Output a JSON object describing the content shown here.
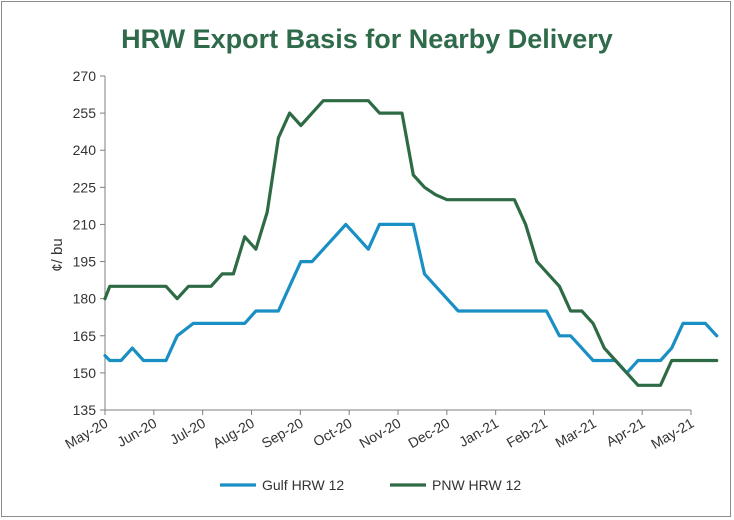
{
  "chart_data": {
    "type": "line",
    "title": "HRW Export Basis for Nearby Delivery",
    "ylabel": "¢/ bu",
    "xlabel": "",
    "ylim": [
      135,
      270
    ],
    "yticks": [
      135,
      150,
      165,
      180,
      195,
      210,
      225,
      240,
      255,
      270
    ],
    "xlim": [
      "2020-05-01",
      "2021-05-01"
    ],
    "xticks": [
      "May-20",
      "Jun-20",
      "Jul-20",
      "Aug-20",
      "Sep-20",
      "Oct-20",
      "Nov-20",
      "Dec-20",
      "Jan-21",
      "Feb-21",
      "Mar-21",
      "Apr-21",
      "May-21"
    ],
    "grid": false,
    "legend_position": "bottom",
    "series": [
      {
        "name": "Gulf HRW 12",
        "color": "#1a8fc4",
        "points": [
          [
            "2020-05-01",
            157
          ],
          [
            "2020-05-04",
            155
          ],
          [
            "2020-05-11",
            155
          ],
          [
            "2020-05-18",
            160
          ],
          [
            "2020-05-25",
            155
          ],
          [
            "2020-06-08",
            155
          ],
          [
            "2020-06-15",
            165
          ],
          [
            "2020-06-25",
            170
          ],
          [
            "2020-07-06",
            170
          ],
          [
            "2020-07-13",
            170
          ],
          [
            "2020-07-20",
            170
          ],
          [
            "2020-07-27",
            170
          ],
          [
            "2020-08-03",
            175
          ],
          [
            "2020-08-10",
            175
          ],
          [
            "2020-08-17",
            175
          ],
          [
            "2020-08-24",
            185
          ],
          [
            "2020-08-31",
            195
          ],
          [
            "2020-09-07",
            195
          ],
          [
            "2020-09-14",
            200
          ],
          [
            "2020-09-21",
            205
          ],
          [
            "2020-09-28",
            210
          ],
          [
            "2020-10-05",
            205
          ],
          [
            "2020-10-12",
            200
          ],
          [
            "2020-10-19",
            210
          ],
          [
            "2020-10-26",
            210
          ],
          [
            "2020-11-02",
            210
          ],
          [
            "2020-11-09",
            210
          ],
          [
            "2020-11-16",
            190
          ],
          [
            "2020-11-23",
            185
          ],
          [
            "2020-11-30",
            180
          ],
          [
            "2020-12-07",
            175
          ],
          [
            "2020-12-21",
            175
          ],
          [
            "2021-01-04",
            175
          ],
          [
            "2021-01-18",
            175
          ],
          [
            "2021-01-31",
            175
          ],
          [
            "2021-02-08",
            165
          ],
          [
            "2021-02-15",
            165
          ],
          [
            "2021-02-22",
            160
          ],
          [
            "2021-03-01",
            155
          ],
          [
            "2021-03-15",
            155
          ],
          [
            "2021-03-22",
            150
          ],
          [
            "2021-03-29",
            155
          ],
          [
            "2021-04-05",
            155
          ],
          [
            "2021-04-12",
            155
          ],
          [
            "2021-04-19",
            160
          ],
          [
            "2021-04-26",
            170
          ],
          [
            "2021-05-03",
            170
          ],
          [
            "2021-05-10",
            170
          ],
          [
            "2021-05-17",
            165
          ]
        ]
      },
      {
        "name": "PNW HRW 12",
        "color": "#2e6b45",
        "points": [
          [
            "2020-05-01",
            180
          ],
          [
            "2020-05-04",
            185
          ],
          [
            "2020-05-11",
            185
          ],
          [
            "2020-05-18",
            185
          ],
          [
            "2020-05-25",
            185
          ],
          [
            "2020-06-01",
            185
          ],
          [
            "2020-06-08",
            185
          ],
          [
            "2020-06-15",
            180
          ],
          [
            "2020-06-22",
            185
          ],
          [
            "2020-06-29",
            185
          ],
          [
            "2020-07-06",
            185
          ],
          [
            "2020-07-13",
            190
          ],
          [
            "2020-07-20",
            190
          ],
          [
            "2020-07-27",
            205
          ],
          [
            "2020-08-03",
            200
          ],
          [
            "2020-08-10",
            215
          ],
          [
            "2020-08-17",
            245
          ],
          [
            "2020-08-24",
            255
          ],
          [
            "2020-08-31",
            250
          ],
          [
            "2020-09-07",
            255
          ],
          [
            "2020-09-14",
            260
          ],
          [
            "2020-09-21",
            260
          ],
          [
            "2020-09-28",
            260
          ],
          [
            "2020-10-05",
            260
          ],
          [
            "2020-10-12",
            260
          ],
          [
            "2020-10-19",
            255
          ],
          [
            "2020-10-26",
            255
          ],
          [
            "2020-11-02",
            255
          ],
          [
            "2020-11-09",
            230
          ],
          [
            "2020-11-16",
            225
          ],
          [
            "2020-11-23",
            222
          ],
          [
            "2020-11-30",
            220
          ],
          [
            "2020-12-07",
            220
          ],
          [
            "2020-12-21",
            220
          ],
          [
            "2021-01-04",
            220
          ],
          [
            "2021-01-11",
            220
          ],
          [
            "2021-01-18",
            210
          ],
          [
            "2021-01-25",
            195
          ],
          [
            "2021-02-01",
            190
          ],
          [
            "2021-02-08",
            185
          ],
          [
            "2021-02-15",
            175
          ],
          [
            "2021-02-22",
            175
          ],
          [
            "2021-03-01",
            170
          ],
          [
            "2021-03-08",
            160
          ],
          [
            "2021-03-15",
            155
          ],
          [
            "2021-03-22",
            150
          ],
          [
            "2021-03-29",
            145
          ],
          [
            "2021-04-05",
            145
          ],
          [
            "2021-04-12",
            145
          ],
          [
            "2021-04-19",
            155
          ],
          [
            "2021-04-26",
            155
          ],
          [
            "2021-05-03",
            155
          ],
          [
            "2021-05-17",
            155
          ]
        ]
      }
    ]
  }
}
